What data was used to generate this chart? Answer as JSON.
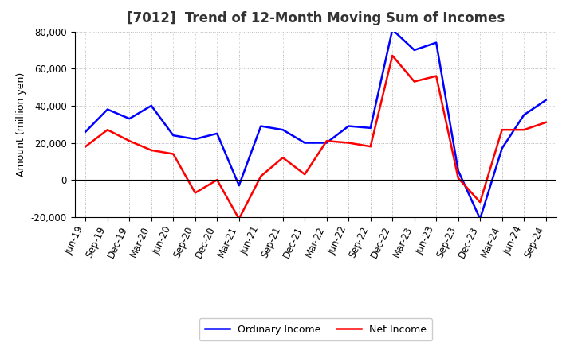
{
  "title": "[7012]  Trend of 12-Month Moving Sum of Incomes",
  "ylabel": "Amount (million yen)",
  "x_labels": [
    "Jun-19",
    "Sep-19",
    "Dec-19",
    "Mar-20",
    "Jun-20",
    "Sep-20",
    "Dec-20",
    "Mar-21",
    "Jun-21",
    "Sep-21",
    "Dec-21",
    "Mar-22",
    "Jun-22",
    "Sep-22",
    "Dec-22",
    "Mar-23",
    "Jun-23",
    "Sep-23",
    "Dec-23",
    "Mar-24",
    "Jun-24",
    "Sep-24"
  ],
  "ordinary_income": [
    26000,
    38000,
    33000,
    40000,
    24000,
    22000,
    25000,
    -3000,
    29000,
    27000,
    20000,
    20000,
    29000,
    28000,
    81000,
    70000,
    74000,
    5000,
    -21000,
    17000,
    35000,
    43000
  ],
  "net_income": [
    18000,
    27000,
    21000,
    16000,
    14000,
    -7000,
    0,
    -21000,
    2000,
    12000,
    3000,
    21000,
    20000,
    18000,
    67000,
    53000,
    56000,
    1000,
    -12000,
    27000,
    27000,
    31000
  ],
  "ordinary_color": "#0000FF",
  "net_color": "#FF0000",
  "ylim": [
    -20000,
    80000
  ],
  "yticks": [
    -20000,
    0,
    20000,
    40000,
    60000,
    80000
  ],
  "background_color": "#FFFFFF",
  "grid_color": "#BBBBBB",
  "title_color": "#333333",
  "title_fontsize": 12,
  "axis_label_fontsize": 9,
  "tick_fontsize": 8.5,
  "legend_fontsize": 9
}
